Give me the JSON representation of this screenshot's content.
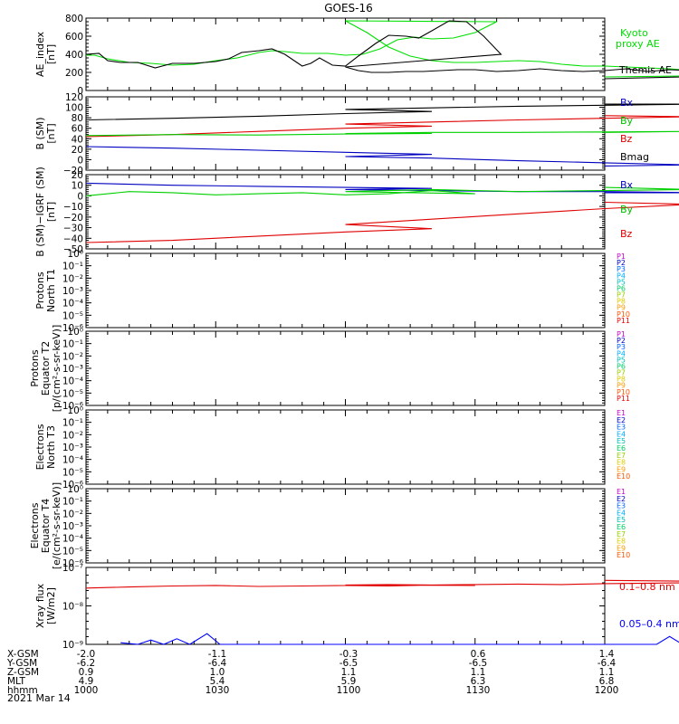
{
  "title": "GOES-16",
  "date_label": "2021 Mar 14",
  "colors": {
    "black": "#000000",
    "red": "#e00000",
    "green": "#00d000",
    "blue": "#0000c0",
    "kyoto": "#00e000",
    "xray_short": "#0000ff"
  },
  "orbit_table": {
    "row_labels": [
      "X-GSM",
      "Y-GSM",
      "Z-GSM",
      "MLT",
      "hhmm"
    ],
    "columns": [
      [
        "-2.0",
        "-6.2",
        "0.9",
        "4.9",
        "1000"
      ],
      [
        "-1.1",
        "-6.4",
        "1.0",
        "5.4",
        "1030"
      ],
      [
        "-0.3",
        "-6.5",
        "1.1",
        "5.9",
        "1100"
      ],
      [
        "0.6",
        "-6.5",
        "1.1",
        "6.3",
        "1130"
      ],
      [
        "1.4",
        "-6.4",
        "1.1",
        "6.8",
        "1200"
      ]
    ]
  },
  "chart_data": [
    {
      "id": "ae",
      "type": "line",
      "ylabel": [
        "AE_index",
        "[nT]"
      ],
      "ylim": [
        0,
        800
      ],
      "yticks": [
        "0",
        "200",
        "400",
        "600",
        "800"
      ],
      "legend": [
        "Kyoto",
        "proxy AE",
        "Themis AE"
      ],
      "x_hhmm": [
        1000,
        1200
      ],
      "series": [
        {
          "name": "Kyoto proxy AE",
          "color": "#00e000",
          "x": [
            1000,
            1002,
            1005,
            1010,
            1015,
            1020,
            1025,
            1030,
            1035,
            1040,
            1043,
            1046,
            1050,
            1053,
            1056,
            1060,
            1064,
            1068,
            1072,
            1076,
            1080,
            1085,
            1090,
            1095,
            1100,
            1105,
            1110,
            1115,
            1120,
            1125,
            1130,
            1135,
            1140,
            1145,
            1150,
            1155,
            1160,
            1165,
            1170,
            1175,
            1180,
            1185,
            1190,
            1195,
            1200
          ],
          "y": [
            390,
            390,
            350,
            310,
            300,
            280,
            290,
            330,
            360,
            420,
            440,
            430,
            410,
            410,
            410,
            390,
            400,
            460,
            560,
            590,
            570,
            580,
            640,
            760,
            770,
            640,
            480,
            380,
            330,
            310,
            310,
            320,
            330,
            320,
            290,
            270,
            270,
            260,
            250,
            240,
            220,
            200,
            190,
            170,
            150
          ]
        },
        {
          "name": "Themis AE",
          "color": "#000000",
          "x": [
            1000,
            1003,
            1005,
            1008,
            1012,
            1016,
            1020,
            1025,
            1030,
            1033,
            1036,
            1040,
            1043,
            1046,
            1050,
            1052,
            1054,
            1057,
            1060,
            1063,
            1067,
            1070,
            1074,
            1077,
            1080,
            1084,
            1088,
            1092,
            1096,
            1100,
            1103,
            1106,
            1110,
            1114,
            1118,
            1122,
            1126,
            1130,
            1135,
            1140,
            1145,
            1150,
            1155,
            1160,
            1165,
            1170,
            1175,
            1180,
            1185,
            1190,
            1195,
            1200
          ],
          "y": [
            400,
            410,
            330,
            310,
            310,
            250,
            300,
            300,
            320,
            350,
            420,
            440,
            460,
            400,
            270,
            300,
            360,
            280,
            270,
            380,
            520,
            610,
            600,
            580,
            660,
            770,
            760,
            600,
            400,
            260,
            220,
            200,
            200,
            210,
            210,
            220,
            230,
            230,
            210,
            220,
            240,
            220,
            210,
            220,
            240,
            210,
            230,
            220,
            230,
            200,
            170,
            130
          ]
        }
      ]
    },
    {
      "id": "bsm",
      "type": "line",
      "ylabel": [
        "B (SM)",
        "[nT]"
      ],
      "ylim": [
        -20,
        120
      ],
      "yticks": [
        "−20",
        "0",
        "20",
        "40",
        "60",
        "80",
        "100",
        "120"
      ],
      "legend": [
        "Bx",
        "By",
        "Bz",
        "Bmag"
      ],
      "x_hhmm": [
        1000,
        1200
      ],
      "series": [
        {
          "name": "Bmag",
          "color": "#000000",
          "x": [
            1000,
            1020,
            1040,
            1060,
            1080,
            1100,
            1120,
            1140,
            1160,
            1180,
            1200
          ],
          "y": [
            76,
            79,
            83,
            88,
            92,
            96,
            99,
            102,
            104,
            106,
            106
          ]
        },
        {
          "name": "Bz",
          "color": "#e00000",
          "x": [
            1000,
            1020,
            1040,
            1060,
            1080,
            1100,
            1120,
            1140,
            1160,
            1180,
            1200
          ],
          "y": [
            44,
            48,
            54,
            60,
            64,
            68,
            72,
            76,
            79,
            82,
            84
          ]
        },
        {
          "name": "By",
          "color": "#00d000",
          "x": [
            1000,
            1020,
            1040,
            1060,
            1080,
            1100,
            1120,
            1140,
            1160,
            1180,
            1200
          ],
          "y": [
            46,
            48,
            47,
            49,
            50,
            50,
            52,
            52,
            53,
            54,
            52
          ]
        },
        {
          "name": "Bx",
          "color": "#0000c0",
          "x": [
            1000,
            1020,
            1040,
            1060,
            1080,
            1100,
            1120,
            1140,
            1160,
            1180,
            1200
          ],
          "y": [
            25,
            22,
            18,
            14,
            10,
            6,
            3,
            -2,
            -6,
            -10,
            -12
          ]
        }
      ]
    },
    {
      "id": "bigrf",
      "type": "line",
      "ylabel": [
        "B (SM)−IGRF (SM)",
        "[nT]"
      ],
      "ylim": [
        -50,
        20
      ],
      "yticks": [
        "−50",
        "−40",
        "−30",
        "−20",
        "−10",
        "0",
        "10",
        "20"
      ],
      "legend": [
        "Bx",
        "By",
        "Bz"
      ],
      "x_hhmm": [
        1000,
        1200
      ],
      "series": [
        {
          "name": "Bx",
          "color": "#0000c0",
          "x": [
            1000,
            1020,
            1040,
            1060,
            1080,
            1100,
            1120,
            1140,
            1160,
            1180,
            1200
          ],
          "y": [
            12,
            10,
            9,
            8,
            7,
            6,
            5,
            4,
            4,
            3,
            3
          ]
        },
        {
          "name": "By",
          "color": "#00d000",
          "x": [
            1000,
            1010,
            1020,
            1030,
            1040,
            1050,
            1060,
            1070,
            1080,
            1090,
            1100,
            1120,
            1140,
            1160,
            1180,
            1200
          ],
          "y": [
            0,
            4,
            3,
            1,
            2,
            3,
            1,
            2,
            5,
            2,
            4,
            6,
            4,
            5,
            6,
            8
          ]
        },
        {
          "name": "Bz",
          "color": "#e00000",
          "x": [
            1000,
            1020,
            1040,
            1060,
            1080,
            1100,
            1120,
            1140,
            1160,
            1180,
            1200
          ],
          "y": [
            -44,
            -42,
            -38,
            -34,
            -31,
            -27,
            -22,
            -17,
            -12,
            -8,
            -6
          ]
        }
      ]
    },
    {
      "id": "p_t1",
      "type": "line",
      "ylabel": [
        "Protons",
        "North T1"
      ],
      "yticks": [
        "10⁻⁶",
        "10⁻⁵",
        "10⁻⁴",
        "10⁻³",
        "10⁻²",
        "10⁻¹",
        "10⁰"
      ],
      "legend": [
        "P1",
        "P2",
        "P3",
        "P4",
        "P5",
        "P6",
        "P7",
        "P8",
        "P9",
        "P10",
        "P11"
      ],
      "series": []
    },
    {
      "id": "p_t2",
      "type": "line",
      "ylabel": [
        "Protons",
        "Equator T2",
        "[p/(cm²-s-sr-keV)]"
      ],
      "yticks": [
        "10⁻⁶",
        "10⁻⁵",
        "10⁻⁴",
        "10⁻³",
        "10⁻²",
        "10⁻¹",
        "10⁰"
      ],
      "legend": [
        "P1",
        "P2",
        "P3",
        "P4",
        "P5",
        "P6",
        "P7",
        "P8",
        "P9",
        "P10",
        "P11"
      ],
      "series": []
    },
    {
      "id": "e_t3",
      "type": "line",
      "ylabel": [
        "Electrons",
        "North T3"
      ],
      "yticks": [
        "10⁻⁶",
        "10⁻⁵",
        "10⁻⁴",
        "10⁻³",
        "10⁻²",
        "10⁻¹",
        "10⁰"
      ],
      "legend": [
        "E1",
        "E2",
        "E3",
        "E4",
        "E5",
        "E6",
        "E7",
        "E8",
        "E9",
        "E10"
      ],
      "series": []
    },
    {
      "id": "e_t4",
      "type": "line",
      "ylabel": [
        "Electrons",
        "Equator T4",
        "[e/(cm²-s-sr-keV)]"
      ],
      "yticks": [
        "10⁻⁶",
        "10⁻⁵",
        "10⁻⁴",
        "10⁻³",
        "10⁻²",
        "10⁻¹",
        "10⁰"
      ],
      "legend": [
        "E1",
        "E2",
        "E3",
        "E4",
        "E5",
        "E6",
        "E7",
        "E8",
        "E9",
        "E10"
      ],
      "series": []
    },
    {
      "id": "xray",
      "type": "line",
      "ylabel": [
        "Xray flux",
        "[W/m2]"
      ],
      "yticks": [
        "10⁻⁹",
        "10⁻⁸",
        "10⁻⁷"
      ],
      "legend": [
        "0.1–0.8 nm",
        "0.05–0.4 nm"
      ],
      "log": true,
      "series": [
        {
          "name": "0.1–0.8 nm",
          "color": "#e00000",
          "x": [
            1000,
            1010,
            1020,
            1030,
            1040,
            1050,
            1060,
            1070,
            1080,
            1090,
            1100,
            1110,
            1120,
            1130,
            1140,
            1150,
            1160,
            1170,
            1180,
            1190,
            1200
          ],
          "y": [
            2.9e-08,
            3.1e-08,
            3.3e-08,
            3.4e-08,
            3.2e-08,
            3.3e-08,
            3.4e-08,
            3.3e-08,
            3.5e-08,
            3.4e-08,
            3.5e-08,
            3.6e-08,
            3.5e-08,
            3.6e-08,
            3.7e-08,
            3.6e-08,
            3.8e-08,
            3.9e-08,
            4e-08,
            4.3e-08,
            4.6e-08
          ]
        },
        {
          "name": "0.05–0.4 nm",
          "color": "#0000ff",
          "x": [
            1008,
            1012,
            1015,
            1018,
            1021,
            1024,
            1028,
            1031,
            1172,
            1175,
            1178,
            1181,
            1185,
            1188,
            1190
          ],
          "y": [
            1.1e-09,
            9e-10,
            1.3e-09,
            9e-10,
            1.4e-09,
            9e-10,
            1.9e-09,
            9e-10,
            9e-10,
            1.6e-09,
            1e-09,
            1.2e-09,
            9e-10,
            1.2e-09,
            9e-10
          ]
        }
      ]
    }
  ]
}
